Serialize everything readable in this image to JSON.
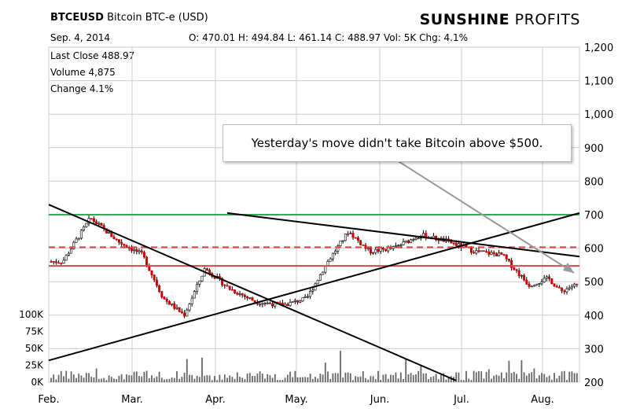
{
  "header": {
    "symbol": "BTCEUSD",
    "name": "Bitcoin BTC-e (USD)",
    "date": "Sep. 4, 2014",
    "ohlc": "O: 470.01  H: 494.84  L: 461.14  C: 488.97  Vol: 5K  Chg: 4.1%",
    "last_close": "Last Close  488.97",
    "volume": "Volume  4,875",
    "change": "Change  4.1%"
  },
  "brand": {
    "part1": "SUNSHINE",
    "part2": " PROFITS"
  },
  "annotation": "Yesterday's move didn't take Bitcoin above $500.",
  "colors": {
    "up": "#000000",
    "down": "#cc0000",
    "green_line": "#33aa55",
    "red_line": "#dd4444",
    "grid": "#cccccc",
    "volume": "#666666"
  },
  "chart_data": {
    "type": "candlestick",
    "x_tick_labels": [
      "Feb.",
      "Mar.",
      "Apr.",
      "May.",
      "Jun.",
      "Jul.",
      "Aug."
    ],
    "price_axis": {
      "ticks": [
        200,
        300,
        400,
        500,
        600,
        700,
        800,
        900,
        1000,
        1100,
        1200
      ],
      "tick_labels": [
        "200",
        "300",
        "400",
        "500",
        "600",
        "700",
        "800",
        "900",
        "1,000",
        "1,100",
        "1,200"
      ],
      "range": [
        200,
        1200
      ]
    },
    "volume_axis": {
      "ticks": [
        0,
        25000,
        50000,
        75000,
        100000
      ],
      "tick_labels": [
        "0K",
        "25K",
        "50K",
        "75K",
        "100K"
      ],
      "range": [
        0,
        100000
      ]
    },
    "price_series": [
      {
        "month": "Feb.",
        "price": 560
      },
      {
        "month": "Feb.",
        "price": 690
      },
      {
        "month": "Feb.",
        "price": 620
      },
      {
        "month": "Mar.",
        "price": 580
      },
      {
        "month": "Mar.",
        "price": 450
      },
      {
        "month": "Mar.",
        "price": 400
      },
      {
        "month": "Mar.",
        "price": 540
      },
      {
        "month": "Apr.",
        "price": 480
      },
      {
        "month": "Apr.",
        "price": 440
      },
      {
        "month": "Apr.",
        "price": 430
      },
      {
        "month": "May.",
        "price": 450
      },
      {
        "month": "May.",
        "price": 560
      },
      {
        "month": "May.",
        "price": 650
      },
      {
        "month": "May.",
        "price": 590
      },
      {
        "month": "Jun.",
        "price": 600
      },
      {
        "month": "Jun.",
        "price": 640
      },
      {
        "month": "Jun.",
        "price": 620
      },
      {
        "month": "Jul.",
        "price": 590
      },
      {
        "month": "Jul.",
        "price": 580
      },
      {
        "month": "Jul.",
        "price": 490
      },
      {
        "month": "Aug.",
        "price": 510
      },
      {
        "month": "Aug.",
        "price": 470
      },
      {
        "month": "Aug.",
        "price": 488.97
      }
    ],
    "horizontal_lines": [
      {
        "price": 700,
        "style": "solid",
        "color": "green"
      },
      {
        "price": 603,
        "style": "dashed",
        "color": "red"
      },
      {
        "price": 547,
        "style": "solid",
        "color": "red"
      }
    ],
    "trend_lines": [
      {
        "from": [
          "Feb.",
          730
        ],
        "to": [
          "Jul.",
          205
        ]
      },
      {
        "from": [
          "Feb.",
          265
        ],
        "to": [
          "Aug.",
          705
        ]
      },
      {
        "from": [
          "Apr.",
          705
        ],
        "to": [
          "Aug.",
          575
        ]
      }
    ]
  }
}
